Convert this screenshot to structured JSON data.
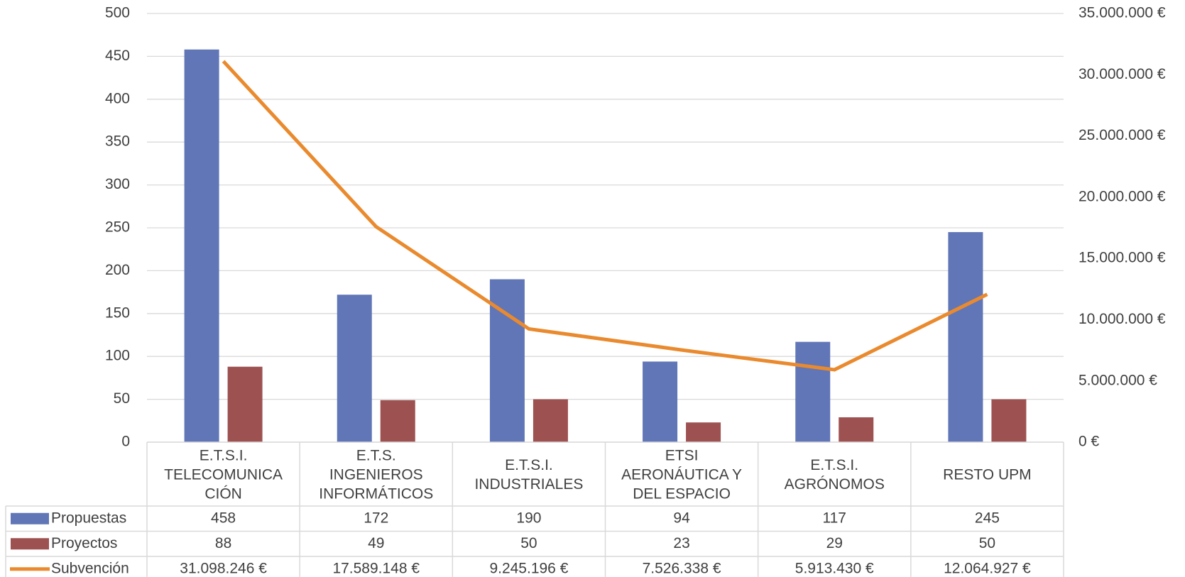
{
  "chart_data": {
    "type": "bar",
    "categories": [
      [
        "E.T.S.I.",
        "TELECOMUNICA",
        "CIÓN"
      ],
      [
        "E.T.S.",
        "INGENIEROS",
        "INFORMÁTICOS"
      ],
      [
        "E.T.S.I.",
        "INDUSTRIALES"
      ],
      [
        "ETSI",
        "AERONÁUTICA Y",
        "DEL ESPACIO"
      ],
      [
        "E.T.S.I.",
        "AGRÓNOMOS"
      ],
      [
        "RESTO UPM"
      ]
    ],
    "series": [
      {
        "name": "Propuestas",
        "type": "bar",
        "axis": "left",
        "color": "#6176b7",
        "values": [
          458,
          172,
          190,
          94,
          117,
          245
        ],
        "display": [
          "458",
          "172",
          "190",
          "94",
          "117",
          "245"
        ]
      },
      {
        "name": "Proyectos",
        "type": "bar",
        "axis": "left",
        "color": "#9e5151",
        "values": [
          88,
          49,
          50,
          23,
          29,
          50
        ],
        "display": [
          "88",
          "49",
          "50",
          "23",
          "29",
          "50"
        ]
      },
      {
        "name": "Subvención",
        "type": "line",
        "axis": "right",
        "color": "#ea8a2e",
        "values": [
          31098246,
          17589148,
          9245196,
          7526338,
          5913430,
          12064927
        ],
        "display": [
          "31.098.246 €",
          "17.589.148 €",
          "9.245.196 €",
          "7.526.338 €",
          "5.913.430 €",
          "12.064.927 €"
        ]
      }
    ],
    "y_left": {
      "min": 0,
      "max": 500,
      "ticks": [
        "0",
        "50",
        "100",
        "150",
        "200",
        "250",
        "300",
        "350",
        "400",
        "450",
        "500"
      ]
    },
    "y_right": {
      "min": 0,
      "max": 35000000,
      "ticks": [
        "0 €",
        "5.000.000 €",
        "10.000.000 €",
        "15.000.000 €",
        "20.000.000 €",
        "25.000.000 €",
        "30.000.000 €",
        "35.000.000 €"
      ]
    },
    "grid": true,
    "legend": "data-table"
  }
}
